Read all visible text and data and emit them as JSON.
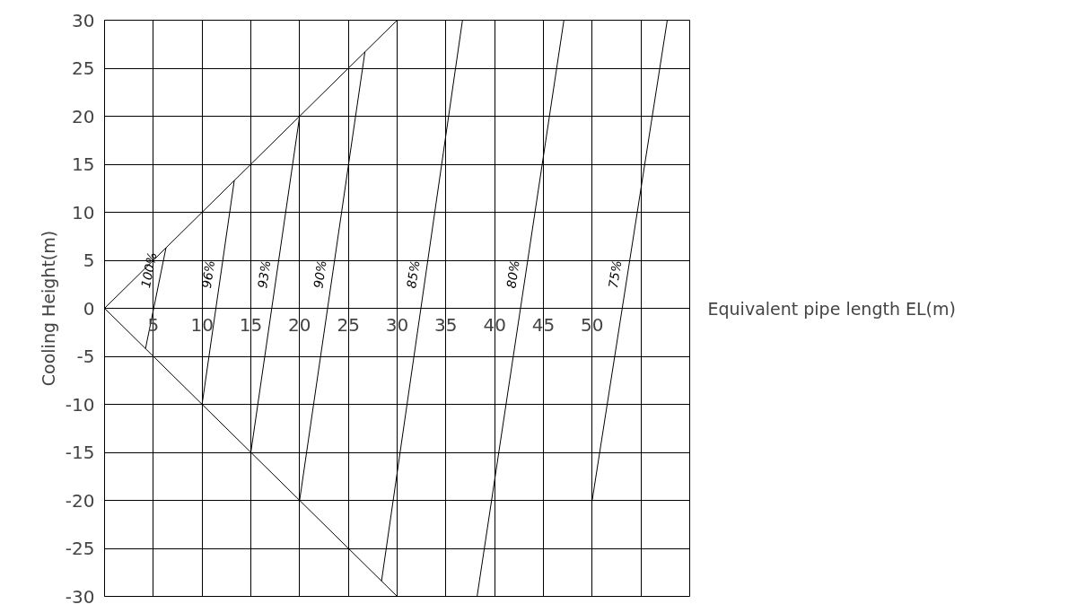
{
  "chart_data": {
    "type": "line",
    "xlabel": "Equivalent pipe length EL(m)",
    "ylabel": "Cooling Height(m)",
    "xlim": [
      0,
      60
    ],
    "ylim": [
      -30,
      30
    ],
    "xticks": [
      5,
      10,
      15,
      20,
      25,
      30,
      35,
      40,
      45,
      50,
      {
        "value": 55,
        "label": null
      },
      {
        "value": 60,
        "label": null
      }
    ],
    "yticks": [
      -30,
      -25,
      -20,
      -15,
      -10,
      -5,
      0,
      5,
      10,
      15,
      20,
      25,
      30
    ],
    "grid": true,
    "series": [
      {
        "color": "#000000",
        "x": [
          30,
          0,
          30
        ],
        "values": [
          30,
          0,
          -30
        ]
      },
      {
        "name": "100%",
        "color": "#000000",
        "x": [
          4.2,
          6.3
        ],
        "values": [
          -4.2,
          6.3
        ]
      },
      {
        "name": "96%",
        "color": "#000000",
        "x": [
          10,
          13.3
        ],
        "values": [
          -10,
          13.3
        ]
      },
      {
        "name": "93%",
        "color": "#000000",
        "x": [
          15,
          20
        ],
        "values": [
          -15,
          20
        ]
      },
      {
        "name": "90%",
        "color": "#000000",
        "x": [
          20,
          26.7
        ],
        "values": [
          -20,
          26.7
        ]
      },
      {
        "name": "85%",
        "color": "#000000",
        "x": [
          28.4,
          36.7
        ],
        "values": [
          -28.4,
          30
        ]
      },
      {
        "name": "80%",
        "color": "#000000",
        "x": [
          38.2,
          47.1
        ],
        "values": [
          -30,
          30
        ]
      },
      {
        "name": "75%",
        "color": "#000000",
        "x": [
          50,
          57.7
        ],
        "values": [
          -20,
          30
        ]
      }
    ]
  }
}
